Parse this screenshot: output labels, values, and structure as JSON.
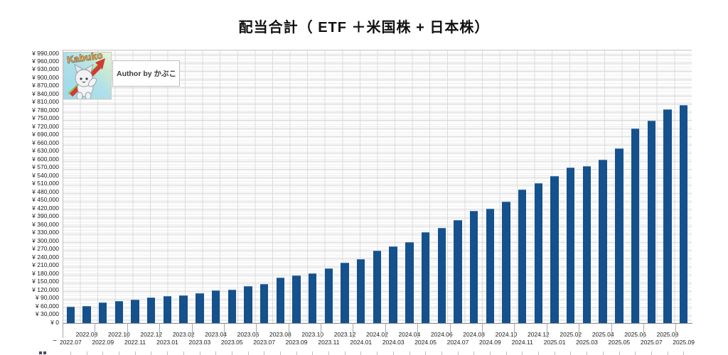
{
  "page": {
    "title": "配当合計（ ETF ＋米国株 + 日本株）"
  },
  "logo": {
    "brand": "Kabuko",
    "author_label": "Author by かぶこ"
  },
  "x_axis": {
    "leading_tilde": "~"
  },
  "chart_data": {
    "type": "bar",
    "title": "配当合計（ ETF ＋米国株 + 日本株）",
    "xlabel": "",
    "ylabel": "",
    "currency_prefix": "¥ ",
    "ylim": [
      0,
      990000
    ],
    "ytick_step": 30000,
    "grid": true,
    "legend": "none",
    "bar_color": "#15518C",
    "categories": [
      "2022.07",
      "2022.08",
      "2022.09",
      "2022.10",
      "2022.11",
      "2022.12",
      "2023.01",
      "2023.02",
      "2023.03",
      "2023.04",
      "2023.05",
      "2023.06",
      "2023.07",
      "2023.08",
      "2023.09",
      "2023.10",
      "2023.11",
      "2023.12",
      "2024.01",
      "2024.02",
      "2024.03",
      "2024.04",
      "2024.05",
      "2024.06",
      "2024.07",
      "2024.08",
      "2024.09",
      "2024.10",
      "2024.11",
      "2024.12",
      "2025.01",
      "2025.02",
      "2025.03",
      "2025.04",
      "2025.05",
      "2025.06",
      "2025.07",
      "2025.08",
      "2025.09"
    ],
    "values": [
      59000,
      62000,
      75000,
      80000,
      86000,
      94000,
      100000,
      101000,
      111000,
      119000,
      124000,
      135000,
      143000,
      167000,
      176000,
      184000,
      200000,
      222000,
      234000,
      267000,
      281000,
      297000,
      335000,
      351000,
      378000,
      412000,
      421000,
      446000,
      492000,
      515000,
      541000,
      571000,
      578000,
      602000,
      642000,
      715000,
      745000,
      785000,
      801000
    ]
  }
}
